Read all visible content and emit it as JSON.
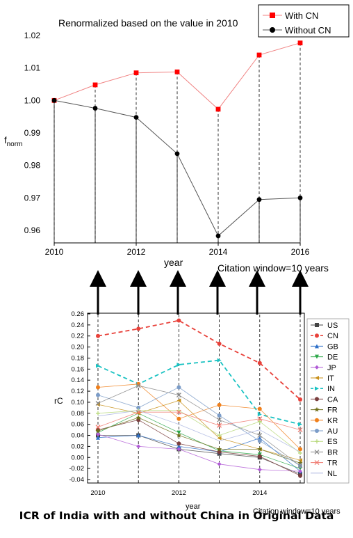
{
  "caption": "ICR of India with and without China in Original Data",
  "chart_data": [
    {
      "type": "line",
      "title": "Renormalized based on the value in 2010",
      "xlabel": "year",
      "ylabel": "f",
      "ylabel_sub": "norm",
      "note": "Citation window=10 years",
      "x": [
        2010,
        2011,
        2012,
        2013,
        2014,
        2015,
        2016
      ],
      "xticks": [
        2010,
        2012,
        2014,
        2016
      ],
      "xlim": [
        2010,
        2016
      ],
      "ylim": [
        0.955,
        1.02
      ],
      "yticks": [
        0.96,
        0.97,
        0.98,
        0.99,
        1.0,
        1.01,
        1.02
      ],
      "ytick_labels": [
        "0.96",
        "0.97",
        "0.98",
        "0.99",
        "1.00",
        "1.01",
        "1.02"
      ],
      "legend_position": "top-right",
      "series": [
        {
          "name": "With CN",
          "color": "#f08080",
          "marker": "square",
          "marker_color": "#ff0000",
          "values": [
            1.0,
            1.0048,
            1.0085,
            1.0088,
            0.9973,
            1.014,
            1.0177
          ]
        },
        {
          "name": "Without CN",
          "color": "#555555",
          "marker": "circle",
          "marker_color": "#000000",
          "values": [
            1.0,
            0.9976,
            0.9948,
            0.9836,
            0.9583,
            0.9695,
            0.97
          ]
        }
      ]
    },
    {
      "type": "line",
      "xlabel": "year",
      "ylabel": "rC",
      "note": "Citation window=10 years",
      "x": [
        2010,
        2011,
        2012,
        2013,
        2014,
        2015
      ],
      "xticks": [
        2010,
        2012,
        2014
      ],
      "xlim": [
        2010,
        2015
      ],
      "ylim": [
        -0.04,
        0.26
      ],
      "yticks": [
        -0.04,
        -0.02,
        0.0,
        0.02,
        0.04,
        0.06,
        0.08,
        0.1,
        0.12,
        0.14,
        0.16,
        0.18,
        0.2,
        0.22,
        0.24,
        0.26
      ],
      "ytick_labels": [
        "-0.04",
        "-0.02",
        "0.00",
        "0.02",
        "0.04",
        "0.06",
        "0.08",
        "0.10",
        "0.12",
        "0.14",
        "0.16",
        "0.18",
        "0.20",
        "0.22",
        "0.24",
        "0.26"
      ],
      "legend_position": "right",
      "series": [
        {
          "name": "US",
          "color": "#444444",
          "marker": "square",
          "values": [
            0.04,
            0.04,
            0.015,
            0.007,
            0.0,
            -0.03
          ]
        },
        {
          "name": "CN",
          "color": "#e8413a",
          "marker": "circle",
          "dashed": true,
          "values": [
            0.22,
            0.233,
            0.248,
            0.206,
            0.171,
            0.105
          ]
        },
        {
          "name": "GB",
          "color": "#2f70c8",
          "marker": "triangle-up",
          "values": [
            0.036,
            0.04,
            0.02,
            0.01,
            0.035,
            -0.025
          ]
        },
        {
          "name": "DE",
          "color": "#2ea84a",
          "marker": "triangle-down",
          "values": [
            0.045,
            0.08,
            0.045,
            0.012,
            0.005,
            -0.02
          ]
        },
        {
          "name": "JP",
          "color": "#b15bd6",
          "marker": "diamond",
          "values": [
            0.042,
            0.02,
            0.015,
            -0.012,
            -0.022,
            -0.025
          ]
        },
        {
          "name": "IT",
          "color": "#c8901a",
          "marker": "triangle-left",
          "values": [
            0.096,
            0.08,
            0.103,
            0.035,
            0.015,
            -0.005
          ]
        },
        {
          "name": "IN",
          "color": "#19c2c2",
          "marker": "triangle-right",
          "dashed": true,
          "values": [
            0.166,
            0.133,
            0.168,
            0.176,
            0.078,
            0.06
          ]
        },
        {
          "name": "CA",
          "color": "#7a3e3e",
          "marker": "circle",
          "values": [
            0.05,
            0.068,
            0.025,
            0.01,
            0.002,
            -0.033
          ]
        },
        {
          "name": "FR",
          "color": "#6f6f1a",
          "marker": "star",
          "values": [
            0.048,
            0.072,
            0.04,
            0.015,
            0.015,
            -0.01
          ]
        },
        {
          "name": "KR",
          "color": "#f07f1a",
          "marker": "circle",
          "values": [
            0.127,
            0.133,
            0.07,
            0.095,
            0.088,
            0.015
          ]
        },
        {
          "name": "AU",
          "color": "#7b9cc8",
          "marker": "circle",
          "values": [
            0.113,
            0.09,
            0.127,
            0.076,
            0.03,
            -0.015
          ]
        },
        {
          "name": "ES",
          "color": "#b7d87a",
          "marker": "plus",
          "values": [
            0.08,
            0.085,
            0.085,
            0.04,
            0.065,
            0.008
          ]
        },
        {
          "name": "BR",
          "color": "#8a8a8a",
          "marker": "x",
          "values": [
            0.098,
            0.13,
            0.113,
            0.068,
            0.04,
            -0.015
          ]
        },
        {
          "name": "TR",
          "color": "#f07a70",
          "marker": "x",
          "values": [
            0.055,
            0.082,
            0.082,
            0.058,
            0.07,
            0.05
          ]
        },
        {
          "name": "NL",
          "color": "#a8b4e0",
          "marker": "none",
          "values": [
            0.075,
            0.085,
            0.06,
            0.03,
            0.05,
            0.01
          ]
        }
      ]
    }
  ]
}
